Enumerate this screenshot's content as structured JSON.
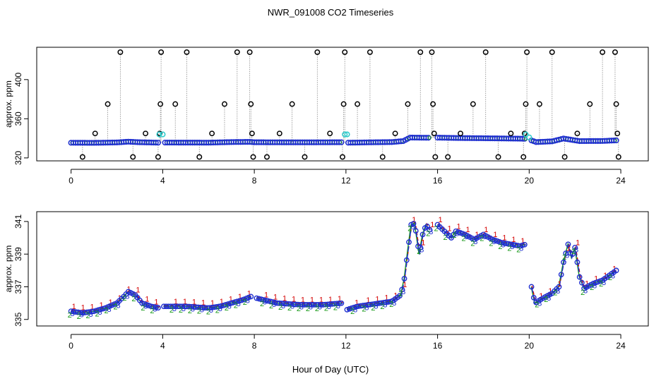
{
  "title": "NWR_091008  CO2 Timeseries",
  "xlabel": "Hour of Day (UTC)",
  "colors": {
    "series1": "#d40000",
    "series2": "#1a9a1a",
    "series3": "#1f2fd0",
    "cyan": "#33cccc",
    "black": "#000000",
    "orange": "#e07020",
    "grayline": "#8a8a8a"
  },
  "chart_data": [
    {
      "type": "scatter",
      "name": "top-panel",
      "ylabel": "approx. ppm",
      "xlim": [
        -1.5,
        25.2
      ],
      "ylim": [
        317,
        433
      ],
      "xticks": [
        0,
        4,
        8,
        12,
        16,
        20,
        24
      ],
      "yticks": [
        320,
        360,
        400
      ],
      "baseline_hi": [
        [
          0,
          335.5
        ],
        [
          1,
          335.4
        ],
        [
          2,
          335.8
        ],
        [
          2.5,
          336.6
        ],
        [
          3,
          336.0
        ],
        [
          3.8,
          335.6
        ],
        [
          4,
          335.7
        ],
        [
          6,
          335.6
        ],
        [
          7,
          336.2
        ],
        [
          7.8,
          336.4
        ],
        [
          8,
          336.0
        ],
        [
          10,
          335.9
        ],
        [
          11.8,
          336.0
        ],
        [
          12,
          335.5
        ],
        [
          13,
          335.9
        ],
        [
          14,
          336.2
        ],
        [
          14.5,
          337.2
        ],
        [
          14.8,
          340.8
        ],
        [
          15.5,
          340.6
        ],
        [
          16,
          340.7
        ],
        [
          17,
          340.3
        ],
        [
          18,
          340.1
        ],
        [
          19.5,
          339.7
        ],
        [
          19.9,
          339.5
        ],
        [
          20.3,
          336.2
        ],
        [
          21,
          336.9
        ],
        [
          21.5,
          339.8
        ],
        [
          22.2,
          337.2
        ],
        [
          23.2,
          337.3
        ],
        [
          23.8,
          337.9
        ]
      ],
      "outliers": [
        [
          0.5,
          321
        ],
        [
          1.05,
          345
        ],
        [
          1.6,
          375
        ],
        [
          2.15,
          428
        ],
        [
          2.7,
          321
        ],
        [
          3.25,
          345
        ],
        [
          3.8,
          321
        ],
        [
          3.87,
          345
        ],
        [
          3.9,
          375
        ],
        [
          3.93,
          428
        ],
        [
          4.55,
          375
        ],
        [
          5.05,
          428
        ],
        [
          5.6,
          321
        ],
        [
          6.15,
          345
        ],
        [
          6.7,
          375
        ],
        [
          7.25,
          428
        ],
        [
          7.8,
          428
        ],
        [
          7.85,
          375
        ],
        [
          7.9,
          345
        ],
        [
          7.95,
          321
        ],
        [
          8.55,
          321
        ],
        [
          9.1,
          345
        ],
        [
          9.65,
          375
        ],
        [
          10.2,
          321
        ],
        [
          10.75,
          428
        ],
        [
          11.3,
          345
        ],
        [
          11.85,
          321
        ],
        [
          11.9,
          375
        ],
        [
          11.95,
          428
        ],
        [
          12.5,
          375
        ],
        [
          13.05,
          428
        ],
        [
          13.6,
          321
        ],
        [
          14.15,
          345
        ],
        [
          14.7,
          375
        ],
        [
          15.25,
          428
        ],
        [
          15.75,
          428
        ],
        [
          15.8,
          375
        ],
        [
          15.85,
          345
        ],
        [
          15.9,
          321
        ],
        [
          16.45,
          321
        ],
        [
          17.0,
          345
        ],
        [
          17.55,
          375
        ],
        [
          18.1,
          428
        ],
        [
          18.65,
          321
        ],
        [
          19.2,
          345
        ],
        [
          19.75,
          321
        ],
        [
          19.8,
          345
        ],
        [
          19.85,
          375
        ],
        [
          19.9,
          428
        ],
        [
          20.45,
          375
        ],
        [
          21.0,
          428
        ],
        [
          21.55,
          321
        ],
        [
          22.1,
          345
        ],
        [
          22.65,
          375
        ],
        [
          23.2,
          428
        ],
        [
          23.75,
          428
        ],
        [
          23.8,
          375
        ],
        [
          23.85,
          345
        ],
        [
          23.9,
          321
        ]
      ],
      "cyan_points": [
        [
          3.85,
          344
        ],
        [
          4.0,
          344
        ],
        [
          11.95,
          344
        ],
        [
          12.05,
          344
        ],
        [
          19.85,
          344
        ],
        [
          20.0,
          341
        ]
      ]
    },
    {
      "type": "line",
      "name": "bottom-panel",
      "ylabel": "approx. ppm",
      "xlim": [
        -1.5,
        25.2
      ],
      "ylim": [
        334.6,
        341.6
      ],
      "xticks": [
        0,
        4,
        8,
        12,
        16,
        20,
        24
      ],
      "yticks": [
        335,
        337,
        339,
        341
      ],
      "segments": [
        [
          [
            0,
            335.5
          ],
          [
            0.5,
            335.4
          ],
          [
            1,
            335.5
          ],
          [
            1.5,
            335.7
          ],
          [
            2,
            336.0
          ],
          [
            2.3,
            336.4
          ],
          [
            2.5,
            336.7
          ],
          [
            2.8,
            336.5
          ],
          [
            3.1,
            336.0
          ],
          [
            3.5,
            335.8
          ],
          [
            3.85,
            335.7
          ]
        ],
        [
          [
            4.05,
            335.8
          ],
          [
            5,
            335.8
          ],
          [
            6,
            335.7
          ],
          [
            6.5,
            335.8
          ],
          [
            7,
            336.0
          ],
          [
            7.5,
            336.2
          ],
          [
            7.85,
            336.4
          ]
        ],
        [
          [
            8.1,
            336.3
          ],
          [
            9,
            336.0
          ],
          [
            10,
            335.9
          ],
          [
            11,
            335.9
          ],
          [
            11.85,
            336.0
          ]
        ],
        [
          [
            12.05,
            335.6
          ],
          [
            12.5,
            335.8
          ],
          [
            13,
            335.9
          ],
          [
            13.5,
            336.0
          ],
          [
            14,
            336.1
          ],
          [
            14.4,
            336.5
          ],
          [
            14.55,
            337.5
          ],
          [
            14.7,
            339.2
          ],
          [
            14.85,
            340.8
          ],
          [
            15.0,
            340.9
          ],
          [
            15.2,
            339.0
          ],
          [
            15.35,
            340.2
          ],
          [
            15.5,
            340.8
          ],
          [
            15.65,
            340.5
          ]
        ],
        [
          [
            16.0,
            340.8
          ],
          [
            16.3,
            340.4
          ],
          [
            16.6,
            340.0
          ],
          [
            16.8,
            340.4
          ],
          [
            17.2,
            340.2
          ],
          [
            17.6,
            339.9
          ],
          [
            18.0,
            340.2
          ],
          [
            18.4,
            339.9
          ],
          [
            18.8,
            339.7
          ],
          [
            19.2,
            339.6
          ],
          [
            19.6,
            339.5
          ],
          [
            19.85,
            339.6
          ]
        ],
        [
          [
            20.1,
            337.0
          ],
          [
            20.25,
            336.0
          ],
          [
            20.6,
            336.3
          ],
          [
            21.0,
            336.6
          ],
          [
            21.3,
            337.0
          ],
          [
            21.5,
            338.5
          ],
          [
            21.7,
            339.6
          ],
          [
            21.85,
            338.8
          ],
          [
            22.0,
            339.4
          ],
          [
            22.2,
            337.6
          ],
          [
            22.4,
            336.9
          ],
          [
            22.8,
            337.2
          ],
          [
            23.2,
            337.4
          ],
          [
            23.6,
            337.8
          ],
          [
            23.8,
            338.0
          ]
        ]
      ]
    }
  ]
}
